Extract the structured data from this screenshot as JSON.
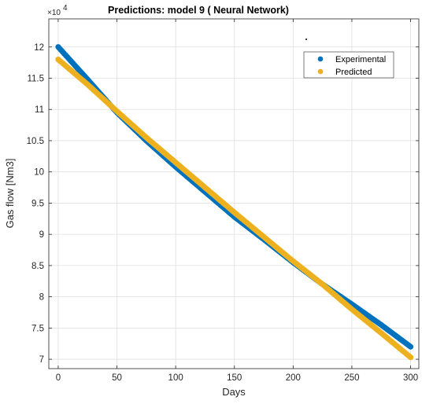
{
  "chart_data": {
    "type": "scatter",
    "title": "Predictions: model 9 (  Neural Network)",
    "xlabel": "Days",
    "ylabel": "Gas flow [Nm3]",
    "y_exponent_base": "×10",
    "y_exponent_power": "4",
    "xlim": [
      -8,
      307
    ],
    "ylim": [
      6.85,
      12.45
    ],
    "x_ticks": [
      0,
      50,
      100,
      150,
      200,
      250,
      300
    ],
    "x_tick_labels": [
      "0",
      "50",
      "100",
      "150",
      "200",
      "250",
      "300"
    ],
    "y_ticks": [
      7,
      7.5,
      8,
      8.5,
      9,
      9.5,
      10,
      10.5,
      11,
      11.5,
      12
    ],
    "y_tick_labels": [
      "7",
      "7.5",
      "8",
      "8.5",
      "9",
      "9.5",
      "10",
      "10.5",
      "11",
      "11.5",
      "12"
    ],
    "grid": true,
    "legend_position": "top-right",
    "series": [
      {
        "name": "Experimental",
        "color": "#0072BD",
        "x": [
          0,
          25,
          50,
          75,
          100,
          125,
          150,
          175,
          200,
          225,
          250,
          275,
          300
        ],
        "y": [
          12.0,
          11.48,
          10.95,
          10.5,
          10.08,
          9.68,
          9.28,
          8.92,
          8.55,
          8.2,
          7.88,
          7.55,
          7.2
        ]
      },
      {
        "name": "Predicted",
        "color": "#EDB120",
        "x": [
          0,
          25,
          50,
          75,
          100,
          125,
          150,
          175,
          200,
          225,
          250,
          275,
          300
        ],
        "y": [
          11.8,
          11.4,
          10.97,
          10.55,
          10.15,
          9.75,
          9.35,
          8.96,
          8.57,
          8.2,
          7.8,
          7.42,
          7.03
        ]
      }
    ]
  }
}
